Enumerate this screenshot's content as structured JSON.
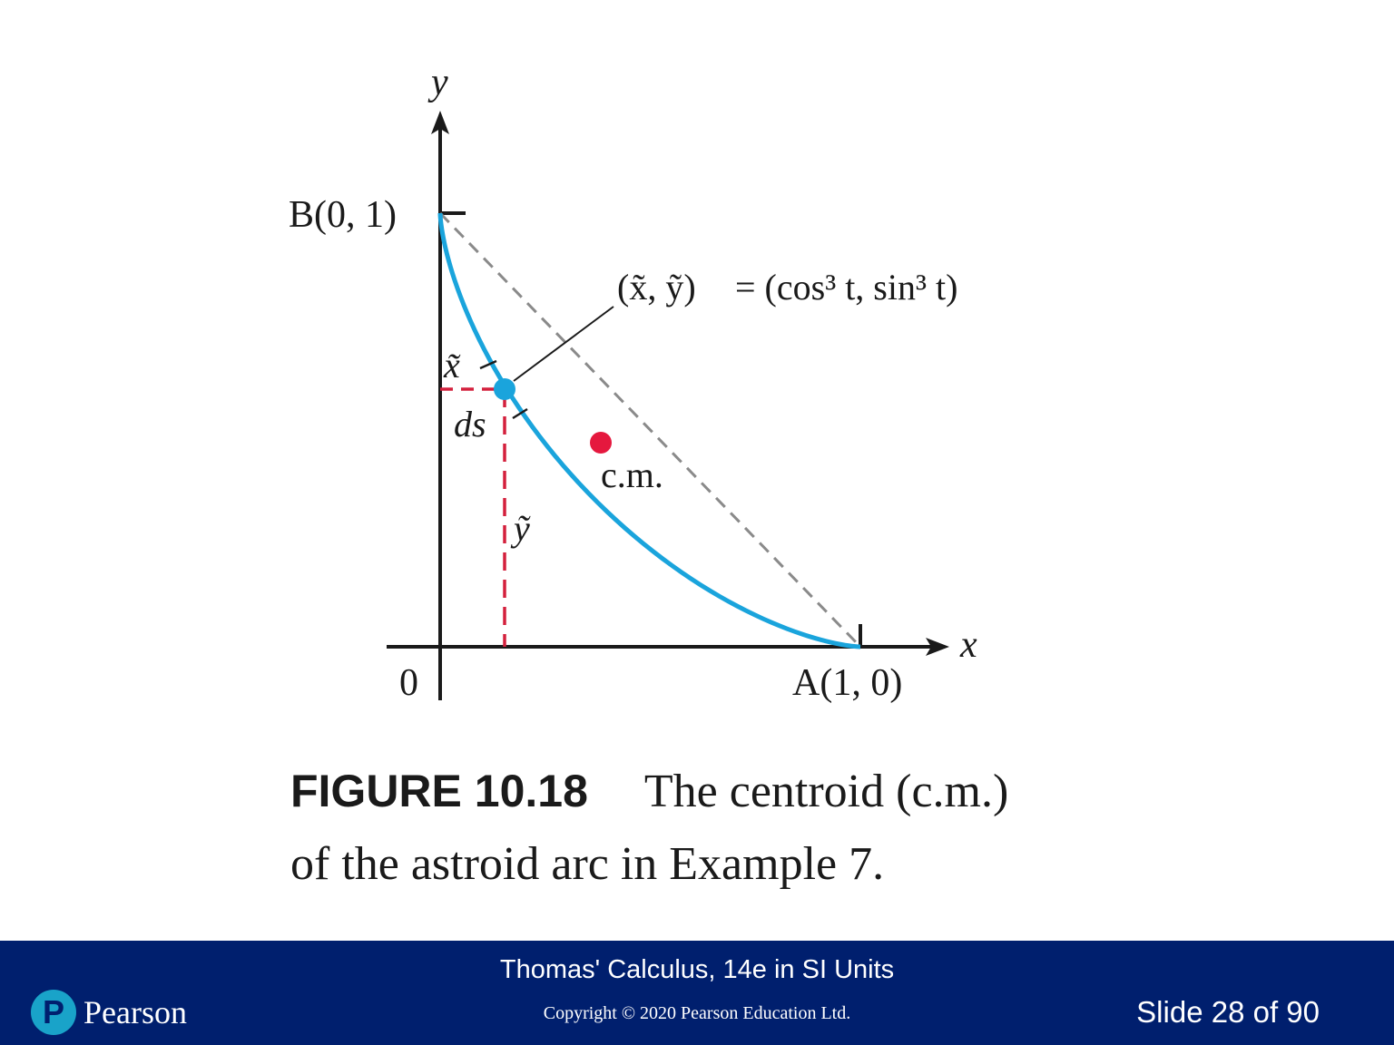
{
  "figure": {
    "axis_x_label": "x",
    "axis_y_label": "y",
    "origin_label": "0",
    "point_b_label": "B(0, 1)",
    "point_a_label": "A(1, 0)",
    "param_point_label_lhs": "(x̃, ỹ)",
    "param_point_label_rhs": "= (cos³ t, sin³ t)",
    "x_tilde_label": "x̃",
    "y_tilde_label": "ỹ",
    "ds_label": "ds",
    "cm_label": "c.m.",
    "colors": {
      "curve": "#1aa4dc",
      "point": "#1aa4dc",
      "centroid": "#e5183e",
      "dashed_projection": "#d4203d",
      "chord": "#8a8a8a",
      "axes": "#1a1a1a"
    }
  },
  "caption": {
    "label": "FIGURE 10.18",
    "text_line1": "The centroid (c.m.)",
    "text_line2": "of the astroid arc in Example 7."
  },
  "footer": {
    "book_title": "Thomas' Calculus, 14e in SI Units",
    "copyright": "Copyright © 2020 Pearson Education Ltd.",
    "slide_number": "Slide 28 of 90",
    "logo_mark": "P",
    "logo_text": "Pearson"
  }
}
